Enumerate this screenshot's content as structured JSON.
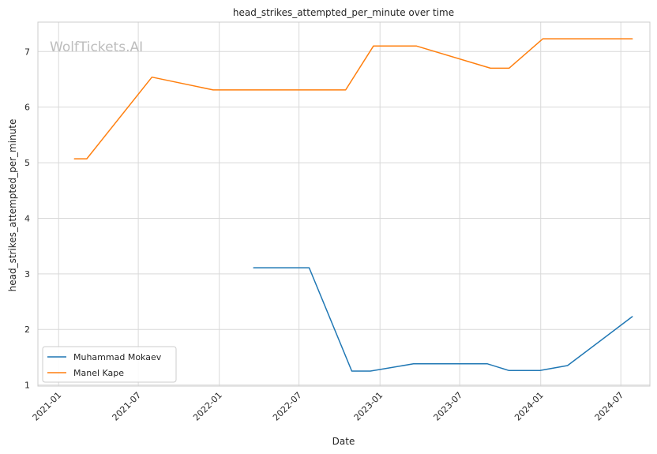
{
  "chart_data": {
    "type": "line",
    "title": "head_strikes_attempted_per_minute over time",
    "xlabel": "Date",
    "ylabel": "head_strikes_attempted_per_minute",
    "watermark": "WolfTickets.AI",
    "x_ticks": [
      "2021-01",
      "2021-07",
      "2022-01",
      "2022-07",
      "2023-01",
      "2023-07",
      "2024-01",
      "2024-07"
    ],
    "y_ticks": [
      1,
      2,
      3,
      4,
      5,
      6,
      7
    ],
    "xlim": [
      "2020-11-15",
      "2024-09-05"
    ],
    "ylim": [
      0.98,
      7.53
    ],
    "grid": true,
    "legend_position": "lower-left",
    "series": [
      {
        "name": "Muhammad Mokaev",
        "color": "#1f77b4",
        "points": [
          {
            "x": "2022-03-20",
            "y": 3.11
          },
          {
            "x": "2022-07-24",
            "y": 3.11
          },
          {
            "x": "2022-10-29",
            "y": 1.25
          },
          {
            "x": "2022-12-10",
            "y": 1.25
          },
          {
            "x": "2023-03-18",
            "y": 1.38
          },
          {
            "x": "2023-09-02",
            "y": 1.38
          },
          {
            "x": "2023-10-21",
            "y": 1.26
          },
          {
            "x": "2023-12-30",
            "y": 1.26
          },
          {
            "x": "2024-03-02",
            "y": 1.35
          },
          {
            "x": "2024-07-27",
            "y": 2.23
          }
        ]
      },
      {
        "name": "Manel Kape",
        "color": "#ff7f0e",
        "points": [
          {
            "x": "2021-02-06",
            "y": 5.07
          },
          {
            "x": "2021-03-06",
            "y": 5.07
          },
          {
            "x": "2021-08-01",
            "y": 6.54
          },
          {
            "x": "2021-12-18",
            "y": 6.31
          },
          {
            "x": "2022-10-15",
            "y": 6.31
          },
          {
            "x": "2022-12-17",
            "y": 7.1
          },
          {
            "x": "2023-03-25",
            "y": 7.1
          },
          {
            "x": "2023-09-09",
            "y": 6.7
          },
          {
            "x": "2023-10-21",
            "y": 6.7
          },
          {
            "x": "2024-01-06",
            "y": 7.23
          },
          {
            "x": "2024-07-27",
            "y": 7.23
          }
        ]
      }
    ]
  }
}
